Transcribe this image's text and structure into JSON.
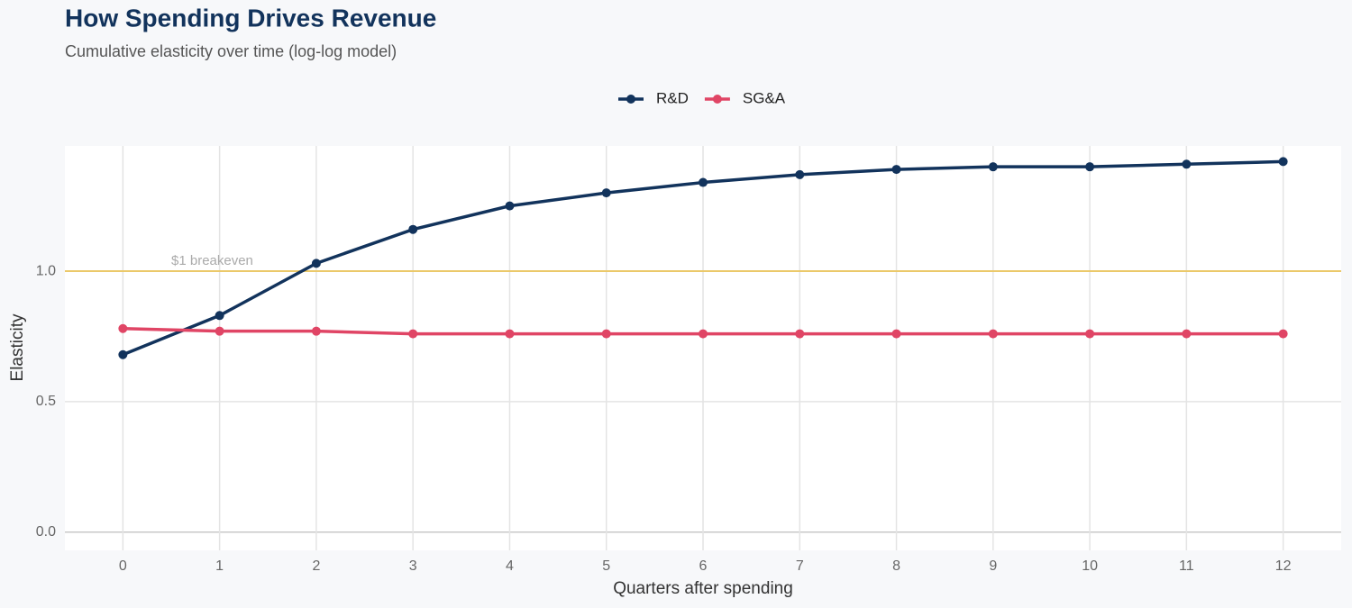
{
  "chart_data": {
    "type": "line",
    "title": "How Spending Drives Revenue",
    "subtitle": "Cumulative elasticity over time (log-log model)",
    "x_label": "Quarters after spending",
    "y_label": "Elasticity",
    "x": [
      0,
      1,
      2,
      3,
      4,
      5,
      6,
      7,
      8,
      9,
      10,
      11,
      12
    ],
    "series": [
      {
        "name": "R&D",
        "color": "#12335c",
        "values": [
          0.68,
          0.83,
          1.03,
          1.16,
          1.25,
          1.3,
          1.34,
          1.37,
          1.39,
          1.4,
          1.4,
          1.41,
          1.42
        ]
      },
      {
        "name": "SG&A",
        "color": "#e04565",
        "values": [
          0.78,
          0.77,
          0.77,
          0.76,
          0.76,
          0.76,
          0.76,
          0.76,
          0.76,
          0.76,
          0.76,
          0.76,
          0.76
        ]
      }
    ],
    "xlim": [
      -0.6,
      12.6
    ],
    "ylim": [
      -0.07,
      1.48
    ],
    "xticks": [
      0,
      1,
      2,
      3,
      4,
      5,
      6,
      7,
      8,
      9,
      10,
      11,
      12
    ],
    "yticks": [
      {
        "value": 0,
        "label": "0.0"
      },
      0.5,
      {
        "value": 1,
        "label": "1.0"
      }
    ],
    "grid": true,
    "legend": "top",
    "reference_line": {
      "value": 1,
      "label": "$1 breakeven",
      "color": "#ebc96a"
    }
  }
}
